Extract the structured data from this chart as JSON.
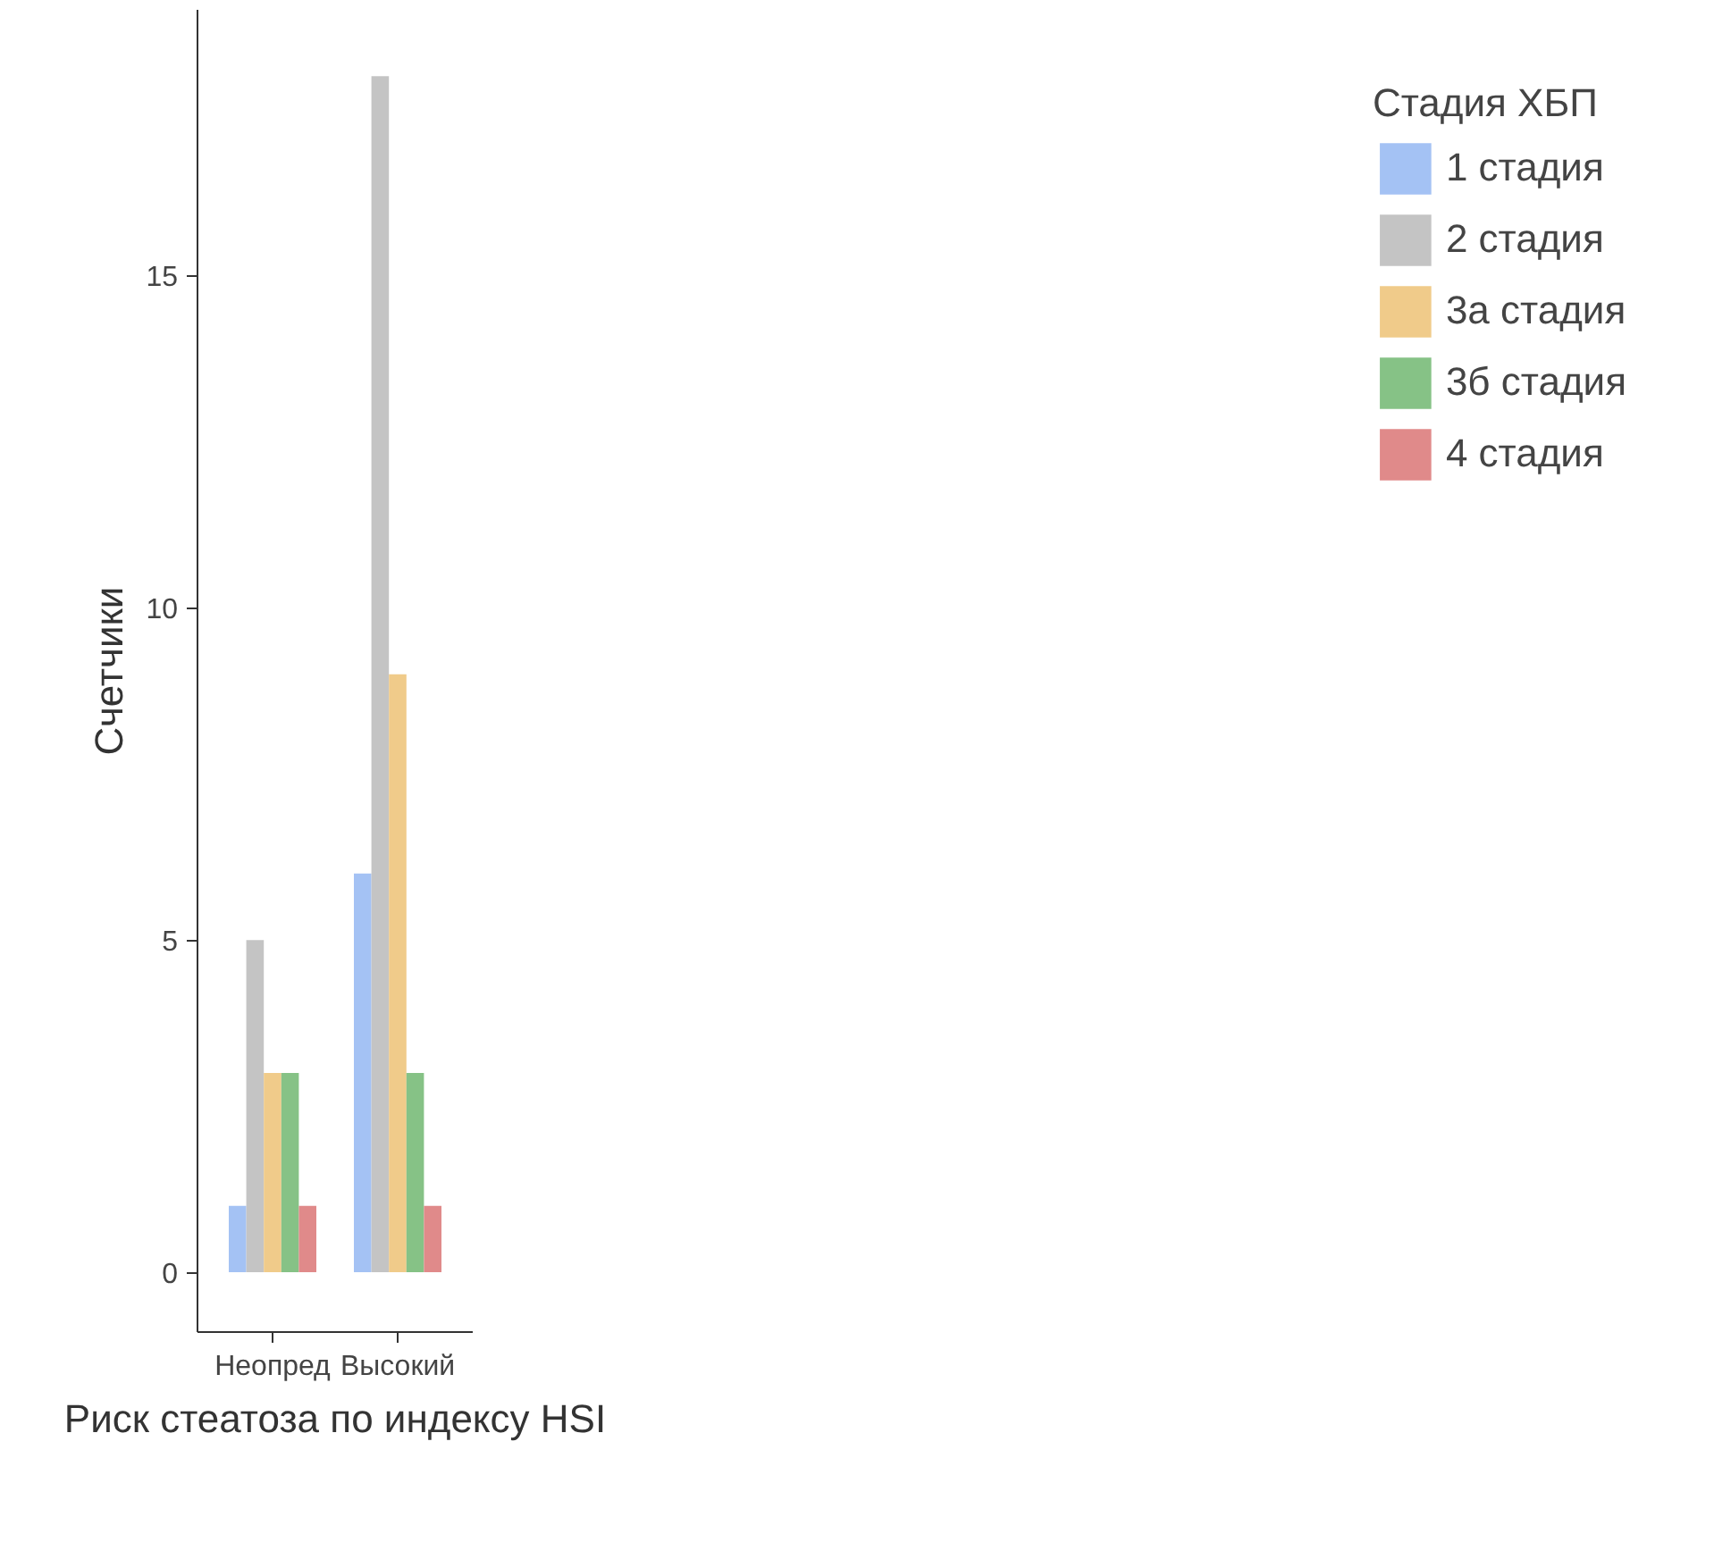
{
  "chart_data": {
    "type": "bar",
    "xlabel": "Риск стеатоза по индексу HSI",
    "ylabel": "Счетчики",
    "legend_title": "Стадия ХБП",
    "categories": [
      "Неопред",
      "Высокий"
    ],
    "series": [
      {
        "name": "1 стадия",
        "color": "#a4c2f4",
        "values": [
          1,
          6
        ]
      },
      {
        "name": "2 стадия",
        "color": "#c4c4c4",
        "values": [
          5,
          18
        ]
      },
      {
        "name": "3а стадия",
        "color": "#f0cb8a",
        "values": [
          3,
          9
        ]
      },
      {
        "name": "3б стадия",
        "color": "#86c286",
        "values": [
          3,
          3
        ]
      },
      {
        "name": "4 стадия",
        "color": "#e08a8a",
        "values": [
          1,
          1
        ]
      }
    ],
    "ylim": [
      -0.9,
      19
    ],
    "yticks": [
      0,
      5,
      10,
      15
    ],
    "grid": false,
    "legend": "right"
  }
}
